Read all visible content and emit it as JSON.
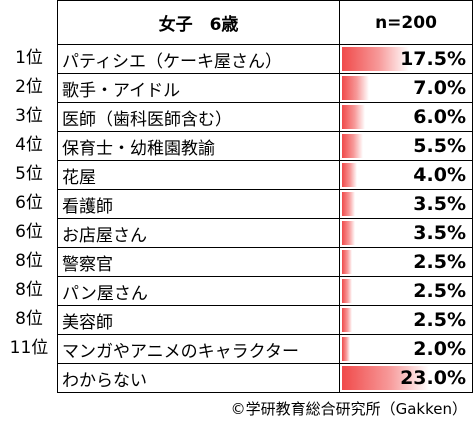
{
  "chart_data": {
    "type": "table",
    "header": {
      "category": "女子　6歳",
      "sample": "n=200"
    },
    "rows": [
      {
        "rank": "1位",
        "name": "パティシエ（ケーキ屋さん）",
        "value": 17.5,
        "label": "17.5%"
      },
      {
        "rank": "2位",
        "name": "歌手・アイドル",
        "value": 7.0,
        "label": "7.0%"
      },
      {
        "rank": "3位",
        "name": "医師（歯科医師含む）",
        "value": 6.0,
        "label": "6.0%"
      },
      {
        "rank": "4位",
        "name": "保育士・幼稚園教諭",
        "value": 5.5,
        "label": "5.5%"
      },
      {
        "rank": "5位",
        "name": "花屋",
        "value": 4.0,
        "label": "4.0%"
      },
      {
        "rank": "6位",
        "name": "看護師",
        "value": 3.5,
        "label": "3.5%"
      },
      {
        "rank": "6位",
        "name": "お店屋さん",
        "value": 3.5,
        "label": "3.5%"
      },
      {
        "rank": "8位",
        "name": "警察官",
        "value": 2.5,
        "label": "2.5%"
      },
      {
        "rank": "8位",
        "name": "パン屋さん",
        "value": 2.5,
        "label": "2.5%"
      },
      {
        "rank": "8位",
        "name": "美容師",
        "value": 2.5,
        "label": "2.5%"
      },
      {
        "rank": "11位",
        "name": "マンガやアニメのキャラクター",
        "value": 2.0,
        "label": "2.0%"
      },
      {
        "rank": "",
        "name": "わからない",
        "value": 23.0,
        "label": "23.0%"
      }
    ],
    "bar_color": "#f04a4a"
  },
  "credit": "©学研教育総合研究所（Gakken）"
}
